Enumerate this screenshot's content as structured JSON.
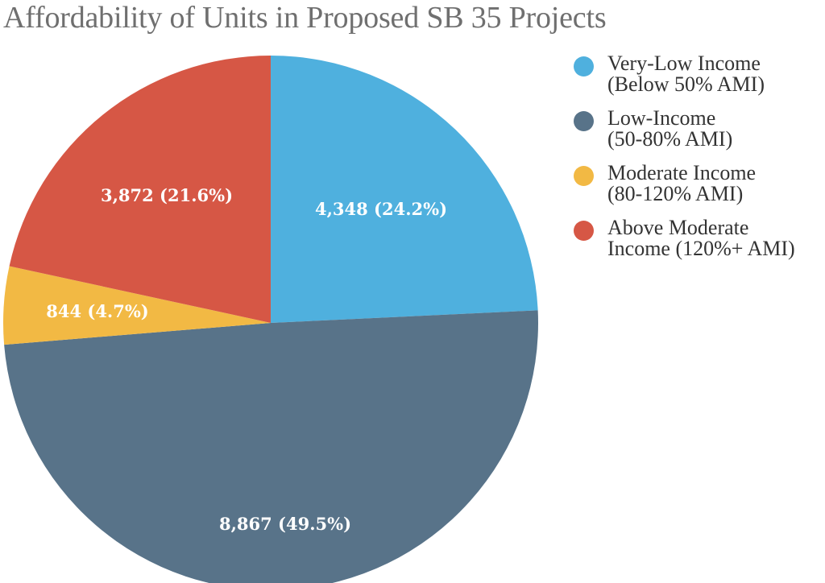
{
  "chart_data": {
    "type": "pie",
    "title": "Affordability of Units in Proposed SB 35 Projects",
    "legend_position": "right",
    "slices": [
      {
        "name": "Very-Low Income (Below 50% AMI)",
        "legend_line1": "Very-Low Income",
        "legend_line2": "(Below 50% AMI)",
        "value": 4348,
        "percent": 24.2,
        "label": "4,348 (24.2%)",
        "color": "#4fb0de"
      },
      {
        "name": "Low-Income (50-80% AMI)",
        "legend_line1": "Low-Income",
        "legend_line2": "(50-80% AMI)",
        "value": 8867,
        "percent": 49.5,
        "label": "8,867 (49.5%)",
        "color": "#587389"
      },
      {
        "name": "Moderate Income (80-120% AMI)",
        "legend_line1": "Moderate Income",
        "legend_line2": "(80-120% AMI)",
        "value": 844,
        "percent": 4.7,
        "label": "844 (4.7%)",
        "color": "#f2b944"
      },
      {
        "name": "Above Moderate Income (120%+ AMI)",
        "legend_line1": "Above Moderate",
        "legend_line2": "Income (120%+ AMI)",
        "value": 3872,
        "percent": 21.6,
        "label": "3,872 (21.6%)",
        "color": "#d65745"
      }
    ]
  }
}
